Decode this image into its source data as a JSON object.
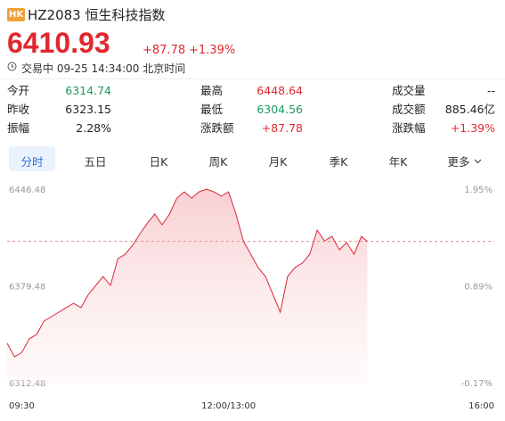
{
  "header": {
    "badge": "HK",
    "title": "HZ2083 恒生科技指数",
    "price": "6410.93",
    "change": "+87.78",
    "change_pct": "+1.39%",
    "status": "交易中 09-25 14:34:00 北京时间"
  },
  "stats": {
    "rows": [
      [
        {
          "label": "今开",
          "value": "6314.74",
          "color": "#1a9a5a"
        },
        {
          "label": "最高",
          "value": "6448.64",
          "color": "#e0282e"
        },
        {
          "label": "成交量",
          "value": "--",
          "color": "#222"
        }
      ],
      [
        {
          "label": "昨收",
          "value": "6323.15",
          "color": "#222"
        },
        {
          "label": "最低",
          "value": "6304.56",
          "color": "#1a9a5a"
        },
        {
          "label": "成交额",
          "value": "885.46亿",
          "color": "#222"
        }
      ],
      [
        {
          "label": "振幅",
          "value": "2.28%",
          "color": "#222"
        },
        {
          "label": "涨跌额",
          "value": "+87.78",
          "color": "#e0282e"
        },
        {
          "label": "涨跌幅",
          "value": "+1.39%",
          "color": "#e0282e"
        }
      ]
    ]
  },
  "tabs": {
    "items": [
      "分时",
      "五日",
      "日K",
      "周K",
      "月K",
      "季K",
      "年K",
      "更多"
    ],
    "selected": 0
  },
  "chart_data": {
    "type": "line",
    "color": "#d9283a",
    "x": [
      0,
      5,
      10,
      15,
      20,
      25,
      30,
      35,
      40,
      45,
      50,
      55,
      60,
      65,
      70,
      75,
      80,
      85,
      90,
      95,
      100,
      105,
      110,
      115,
      120,
      125,
      130,
      135,
      140,
      145,
      150,
      155,
      160,
      165,
      170,
      175,
      180,
      185,
      190,
      195,
      200,
      205,
      210,
      215,
      220,
      225,
      230,
      235,
      240,
      244
    ],
    "values": [
      6340.3,
      6331.0,
      6334.1,
      6343.4,
      6346.5,
      6355.7,
      6358.8,
      6361.9,
      6365.0,
      6368.0,
      6365.0,
      6374.2,
      6380.4,
      6386.6,
      6380.4,
      6398.9,
      6402.0,
      6408.2,
      6416.2,
      6423.6,
      6429.8,
      6422.4,
      6429.8,
      6440.9,
      6445.2,
      6440.9,
      6445.2,
      6447.1,
      6445.2,
      6442.2,
      6445.2,
      6429.8,
      6411.3,
      6402.0,
      6392.8,
      6386.6,
      6374.2,
      6361.9,
      6386.6,
      6392.8,
      6395.9,
      6402.0,
      6418.7,
      6411.3,
      6414.4,
      6405.1,
      6410.1,
      6402.0,
      6414.4,
      6410.93
    ],
    "reference": 6410.93,
    "xlim": [
      0,
      330
    ],
    "xticks": [
      {
        "value": 0,
        "label": "09:30"
      },
      {
        "value": 150,
        "label": "12:00/13:00"
      },
      {
        "value": 330,
        "label": "16:00"
      }
    ],
    "ylim": [
      6312.48,
      6446.48
    ],
    "yticks": [
      6446.48,
      6379.48,
      6312.48
    ],
    "y2lim": [
      -0.17,
      1.95
    ],
    "y2ticks": [
      {
        "value": 1.95,
        "label": "1.95%"
      },
      {
        "value": 0.89,
        "label": "0.89%"
      },
      {
        "value": -0.17,
        "label": "-0.17%"
      }
    ]
  }
}
